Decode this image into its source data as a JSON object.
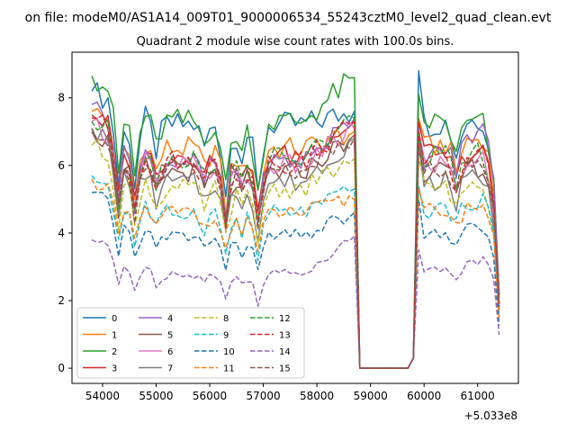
{
  "chart_data": {
    "type": "line",
    "suptitle": "on file: modeM0/AS1A14_009T01_9000006534_55243cztM0_level2_quad_clean.evt",
    "title": "Quadrant 2 module wise count rates with 100.0s bins.",
    "xlabel": "",
    "ylabel": "",
    "x_offset_label": "+5.033e8",
    "xlim": [
      53430,
      61760
    ],
    "ylim": [
      -0.45,
      9.35
    ],
    "xticks": [
      54000,
      55000,
      56000,
      57000,
      58000,
      59000,
      60000,
      61000
    ],
    "xtick_labels": [
      "54000",
      "55000",
      "56000",
      "57000",
      "58000",
      "59000",
      "60000",
      "61000"
    ],
    "yticks": [
      0,
      2,
      4,
      6,
      8
    ],
    "ytick_labels": [
      "0",
      "2",
      "4",
      "6",
      "8"
    ],
    "legend_position": "lower-left",
    "legend_columns": 4,
    "series": [
      {
        "name": "0",
        "color": "#1f77b4",
        "dash": "solid",
        "base": 7.2,
        "start": 8.2,
        "peak_end": 7.6,
        "spike": 8.8,
        "end": 7.4
      },
      {
        "name": "1",
        "color": "#ff7f0e",
        "dash": "solid",
        "base": 6.5,
        "start": 7.6,
        "peak_end": 7.0,
        "spike": 7.4,
        "end": 6.9
      },
      {
        "name": "2",
        "color": "#2ca02c",
        "dash": "solid",
        "base": 7.3,
        "start": 8.65,
        "peak_end": 8.6,
        "spike": 8.1,
        "end": 7.2
      },
      {
        "name": "3",
        "color": "#d62728",
        "dash": "solid",
        "base": 6.3,
        "start": 7.5,
        "peak_end": 7.3,
        "spike": 7.3,
        "end": 6.4
      },
      {
        "name": "4",
        "color": "#9467bd",
        "dash": "solid",
        "base": 6.1,
        "start": 7.8,
        "peak_end": 7.4,
        "spike": 7.1,
        "end": 7.3
      },
      {
        "name": "5",
        "color": "#8c564b",
        "dash": "solid",
        "base": 5.8,
        "start": 7.0,
        "peak_end": 6.9,
        "spike": 6.8,
        "end": 6.0
      },
      {
        "name": "6",
        "color": "#e377c2",
        "dash": "solid",
        "base": 6.0,
        "start": 7.3,
        "peak_end": 7.1,
        "spike": 7.0,
        "end": 6.2
      },
      {
        "name": "7",
        "color": "#7f7f7f",
        "dash": "solid",
        "base": 5.5,
        "start": 7.1,
        "peak_end": 6.8,
        "spike": 6.7,
        "end": 5.7
      },
      {
        "name": "8",
        "color": "#bcbd22",
        "dash": "dashed",
        "base": 5.3,
        "start": 6.6,
        "peak_end": 6.2,
        "spike": 6.2,
        "end": 5.5
      },
      {
        "name": "9",
        "color": "#17becf",
        "dash": "dashed",
        "base": 4.6,
        "start": 5.7,
        "peak_end": 5.3,
        "spike": 5.4,
        "end": 5.1
      },
      {
        "name": "10",
        "color": "#1f77b4",
        "dash": "dashed",
        "base": 3.9,
        "start": 5.2,
        "peak_end": 4.6,
        "spike": 5.0,
        "end": 4.2
      },
      {
        "name": "11",
        "color": "#ff7f0e",
        "dash": "dashed",
        "base": 4.6,
        "start": 5.6,
        "peak_end": 5.0,
        "spike": 5.3,
        "end": 4.9
      },
      {
        "name": "12",
        "color": "#2ca02c",
        "dash": "dashed",
        "base": 6.2,
        "start": 7.3,
        "peak_end": 7.4,
        "spike": 7.0,
        "end": 6.4
      },
      {
        "name": "13",
        "color": "#d62728",
        "dash": "dashed",
        "base": 6.1,
        "start": 7.4,
        "peak_end": 7.3,
        "spike": 7.0,
        "end": 6.3
      },
      {
        "name": "14",
        "color": "#9467bd",
        "dash": "dashed",
        "base": 2.8,
        "start": 3.8,
        "peak_end": 3.9,
        "spike": 3.5,
        "end": 3.3
      },
      {
        "name": "15",
        "color": "#8c564b",
        "dash": "dashed",
        "base": 5.9,
        "start": 7.1,
        "peak_end": 6.8,
        "spike": 6.5,
        "end": 6.0
      }
    ],
    "time_grid": {
      "x_start": 53800,
      "step": 100,
      "active_end": 58700,
      "gap_x": [
        58800,
        59700
      ],
      "resume": 59900,
      "x_end": 61400
    },
    "dips": [
      {
        "x": 54300,
        "depth": 2.1
      },
      {
        "x": 54600,
        "depth": 1.9
      },
      {
        "x": 55000,
        "depth": 0.7
      },
      {
        "x": 55900,
        "depth": 0.6
      },
      {
        "x": 56300,
        "depth": 1.8
      },
      {
        "x": 56600,
        "depth": 0.8
      },
      {
        "x": 56900,
        "depth": 1.9
      },
      {
        "x": 60600,
        "depth": 0.9
      },
      {
        "x": 61300,
        "depth": 1.7
      }
    ]
  }
}
